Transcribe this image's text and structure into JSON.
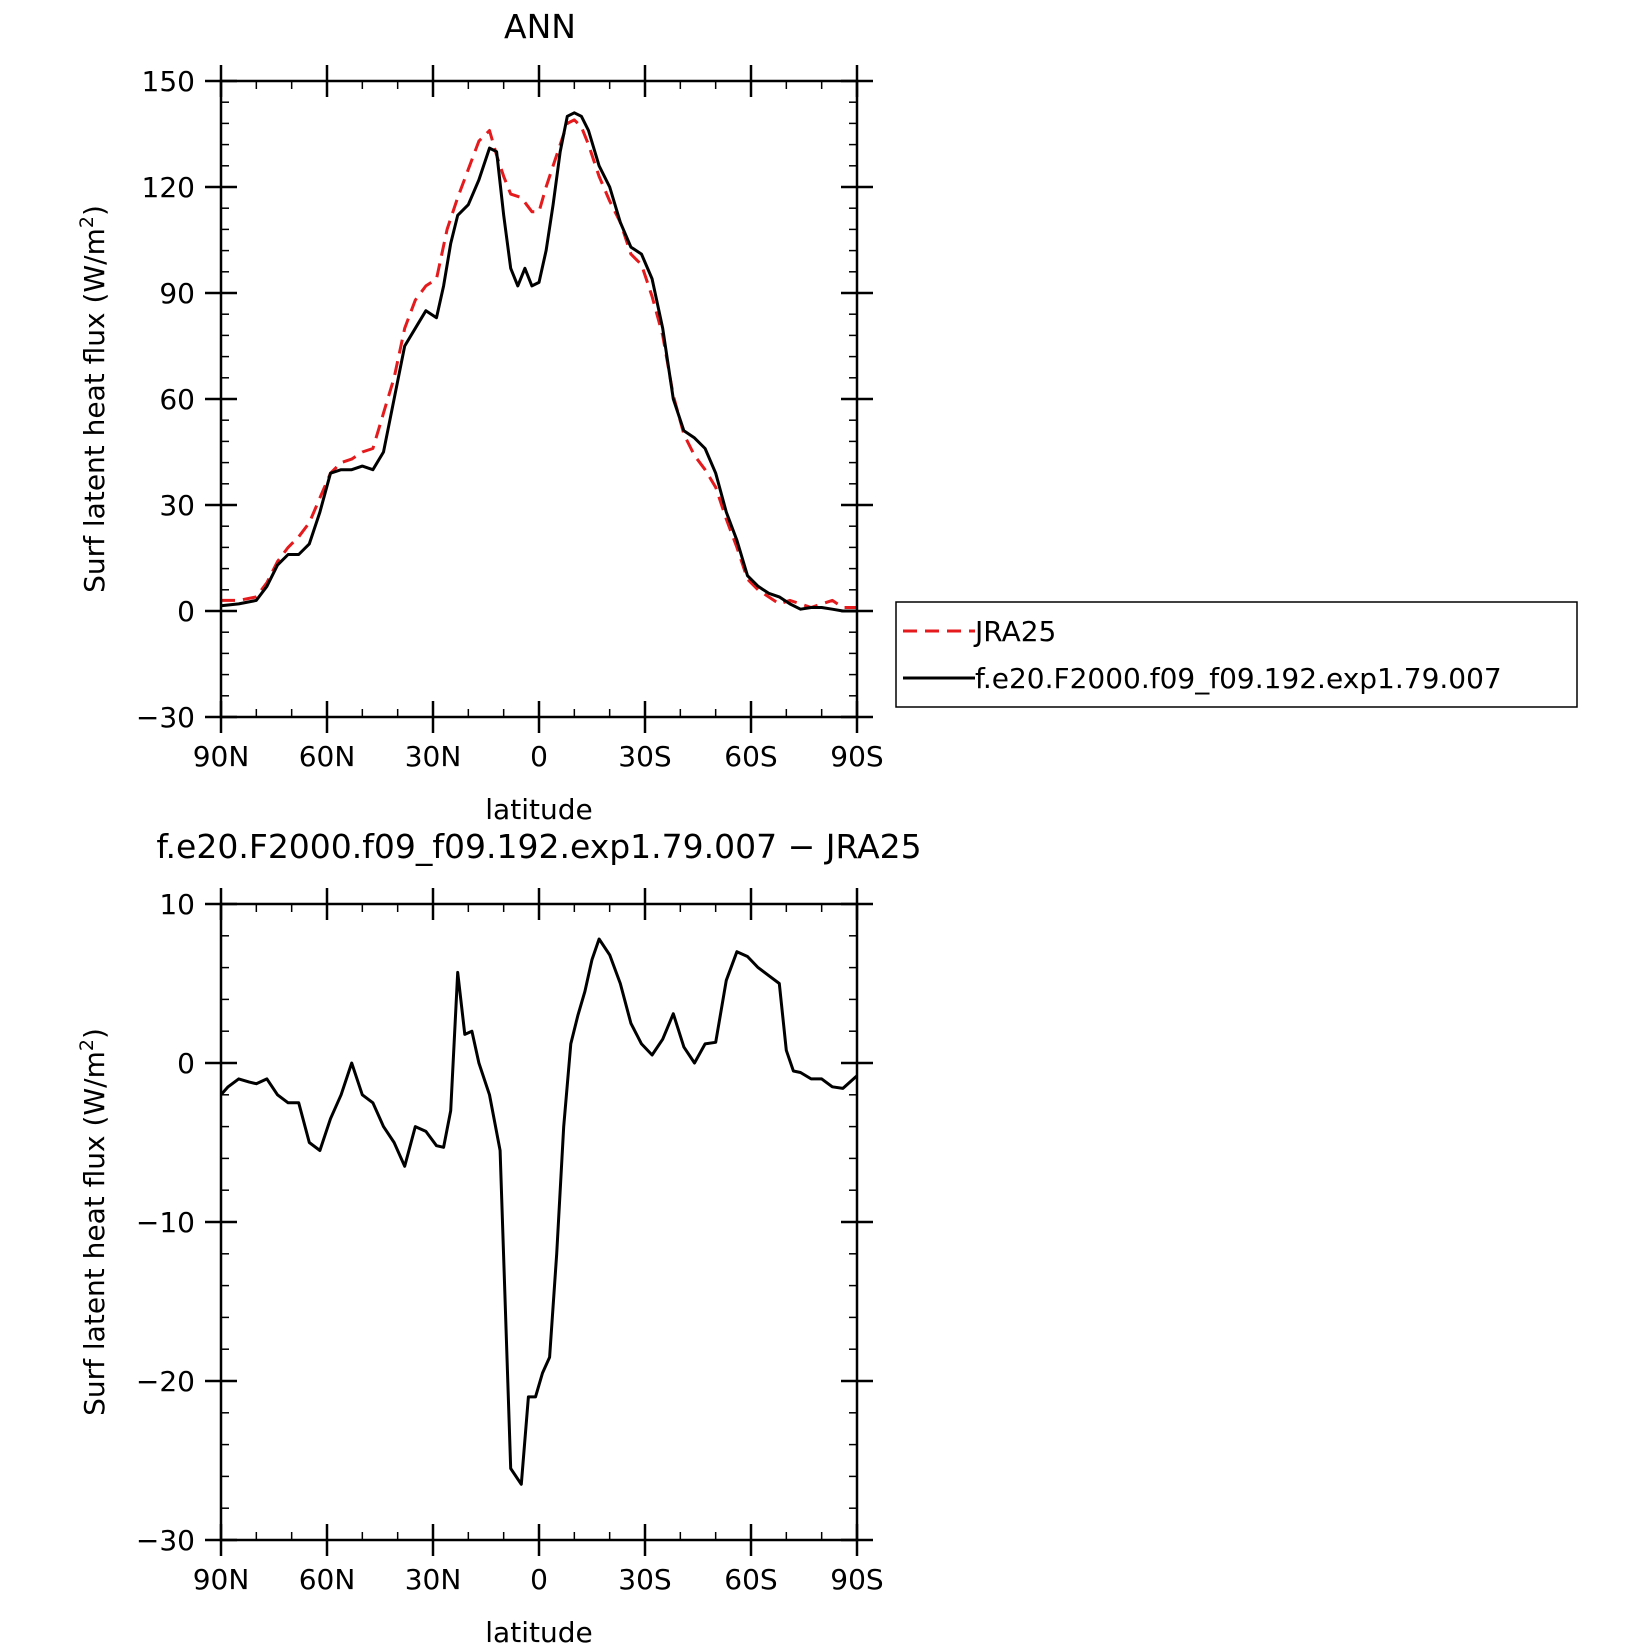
{
  "colors": {
    "background": "#ffffff",
    "axis": "#000000",
    "model_line": "#000000",
    "jra_line": "#e41a1c"
  },
  "chart_data": [
    {
      "type": "line",
      "title": "ANN",
      "xlabel": "latitude",
      "ylabel": "Surf latent heat flux (W/m²)",
      "ylabel_main": "Surf latent heat flux (W/m",
      "ylabel_sup": "2",
      "ylabel_close": ")",
      "xlim": [
        90,
        -90
      ],
      "ylim": [
        -30,
        150
      ],
      "x_ticks": [
        {
          "value": 90,
          "label": "90N"
        },
        {
          "value": 60,
          "label": "60N"
        },
        {
          "value": 30,
          "label": "30N"
        },
        {
          "value": 0,
          "label": "0"
        },
        {
          "value": -30,
          "label": "30S"
        },
        {
          "value": -60,
          "label": "60S"
        },
        {
          "value": -90,
          "label": "90S"
        }
      ],
      "y_ticks": [
        {
          "value": 150,
          "label": "150"
        },
        {
          "value": 120,
          "label": "120"
        },
        {
          "value": 90,
          "label": "90"
        },
        {
          "value": 60,
          "label": "60"
        },
        {
          "value": 30,
          "label": "30"
        },
        {
          "value": 0,
          "label": "0"
        },
        {
          "value": -30,
          "label": "−30"
        }
      ],
      "legend": {
        "placement": "right",
        "entries": [
          {
            "name": "JRA25",
            "style": "dashed",
            "color": "#e41a1c"
          },
          {
            "name": "f.e20.F2000.f09_f09.192.exp1.79.007",
            "style": "solid",
            "color": "#000000"
          }
        ]
      },
      "series": [
        {
          "name": "JRA25",
          "style": "dashed",
          "color": "#e41a1c",
          "x": [
            90,
            85,
            80,
            77,
            74,
            71,
            68,
            65,
            62,
            59,
            56,
            53,
            50,
            47,
            44,
            41,
            38,
            35,
            32,
            29,
            26,
            23,
            20,
            17,
            14,
            12,
            10,
            8,
            5,
            2,
            0,
            -2,
            -4,
            -6,
            -8,
            -10,
            -12,
            -14,
            -17,
            -20,
            -23,
            -26,
            -29,
            -32,
            -35,
            -38,
            -41,
            -44,
            -47,
            -50,
            -53,
            -56,
            -59,
            -62,
            -65,
            -68,
            -71,
            -74,
            -77,
            -80,
            -83,
            -86,
            -90
          ],
          "y": [
            3,
            3,
            4,
            8,
            14,
            18,
            21,
            25,
            32,
            39,
            42,
            43,
            45,
            46,
            56,
            66,
            80,
            88,
            92,
            94,
            108,
            117,
            125,
            133,
            136,
            129,
            123,
            118,
            117,
            113,
            113,
            120,
            126,
            132,
            138,
            139,
            137,
            132,
            123,
            116,
            110,
            101,
            98,
            89,
            78,
            61,
            50,
            44,
            40,
            35,
            26,
            18,
            9,
            6,
            4,
            2,
            3,
            2,
            1,
            2,
            3,
            1,
            1
          ]
        },
        {
          "name": "f.e20.F2000.f09_f09.192.exp1.79.007",
          "style": "solid",
          "color": "#000000",
          "x": [
            90,
            85,
            80,
            77,
            74,
            71,
            68,
            65,
            62,
            59,
            56,
            53,
            50,
            47,
            44,
            41,
            38,
            35,
            32,
            29,
            27,
            25,
            23,
            20,
            17,
            14,
            12,
            10,
            8,
            6,
            4,
            2,
            0,
            -2,
            -4,
            -6,
            -8,
            -10,
            -12,
            -14,
            -17,
            -20,
            -23,
            -26,
            -29,
            -32,
            -35,
            -38,
            -41,
            -44,
            -47,
            -50,
            -53,
            -56,
            -59,
            -62,
            -65,
            -68,
            -71,
            -74,
            -77,
            -80,
            -83,
            -86,
            -90
          ],
          "y": [
            1.5,
            2,
            3,
            7,
            13,
            16,
            16,
            19,
            28,
            39,
            40,
            40,
            41,
            40,
            45,
            60,
            75,
            80,
            85,
            83,
            92,
            104,
            112,
            115,
            122,
            131,
            130,
            112,
            97,
            92,
            97,
            92,
            93,
            102,
            115,
            130,
            140,
            141,
            140,
            136,
            126,
            120,
            110,
            103,
            101,
            94,
            80,
            60,
            51,
            49,
            46,
            39,
            28,
            20,
            10,
            7,
            5,
            4,
            2,
            0.5,
            1,
            1,
            0.5,
            0,
            0
          ]
        }
      ]
    },
    {
      "type": "line",
      "title": "f.e20.F2000.f09_f09.192.exp1.79.007 − JRA25",
      "xlabel": "latitude",
      "ylabel": "Surf latent heat flux (W/m²)",
      "ylabel_main": "Surf latent heat flux (W/m",
      "ylabel_sup": "2",
      "ylabel_close": ")",
      "xlim": [
        90,
        -90
      ],
      "ylim": [
        -30,
        10
      ],
      "x_ticks": [
        {
          "value": 90,
          "label": "90N"
        },
        {
          "value": 60,
          "label": "60N"
        },
        {
          "value": 30,
          "label": "30N"
        },
        {
          "value": 0,
          "label": "0"
        },
        {
          "value": -30,
          "label": "30S"
        },
        {
          "value": -60,
          "label": "60S"
        },
        {
          "value": -90,
          "label": "90S"
        }
      ],
      "y_ticks": [
        {
          "value": 10,
          "label": "10"
        },
        {
          "value": 0,
          "label": "0"
        },
        {
          "value": -10,
          "label": "−10"
        },
        {
          "value": -20,
          "label": "−20"
        },
        {
          "value": -30,
          "label": "−30"
        }
      ],
      "series": [
        {
          "name": "",
          "style": "solid",
          "color": "#000000",
          "x": [
            90,
            88,
            85,
            82,
            80,
            77,
            74,
            71,
            68,
            65,
            62,
            59,
            56,
            53,
            50,
            47,
            44,
            41,
            38,
            35,
            32,
            29,
            27,
            25,
            23,
            21,
            19,
            17,
            14,
            11,
            8,
            5,
            3,
            1,
            -1,
            -3,
            -5,
            -7,
            -9,
            -11,
            -13,
            -15,
            -17,
            -20,
            -23,
            -26,
            -29,
            -32,
            -35,
            -38,
            -41,
            -44,
            -47,
            -50,
            -53,
            -56,
            -59,
            -62,
            -65,
            -68,
            -70,
            -72,
            -74,
            -77,
            -80,
            -83,
            -86,
            -90
          ],
          "y": [
            -2,
            -1.5,
            -1,
            -1.2,
            -1.3,
            -1,
            -2,
            -2.5,
            -2.5,
            -5,
            -5.5,
            -3.5,
            -2,
            0,
            -2,
            -2.5,
            -4,
            -5,
            -6.5,
            -4,
            -4.3,
            -5.2,
            -5.3,
            -3,
            5.7,
            1.8,
            2,
            0,
            -2,
            -5.5,
            -25.5,
            -26.5,
            -21,
            -21,
            -19.5,
            -18.5,
            -12,
            -4,
            1.2,
            3,
            4.5,
            6.5,
            7.8,
            6.8,
            5,
            2.5,
            1.2,
            0.5,
            1.5,
            3.1,
            1,
            0,
            1.2,
            1.3,
            5.2,
            7,
            6.7,
            6,
            5.5,
            5,
            0.8,
            -0.5,
            -0.6,
            -1,
            -1,
            -1.5,
            -1.6,
            -0.8
          ]
        }
      ]
    }
  ]
}
